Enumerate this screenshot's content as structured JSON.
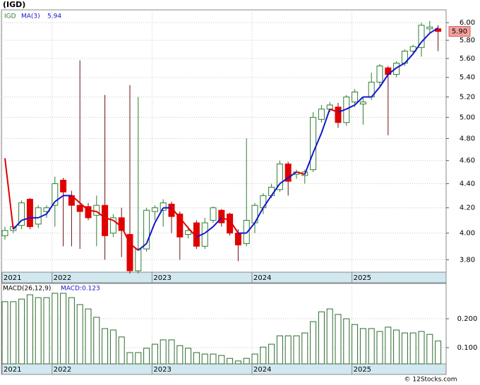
{
  "footer": "© 12Stocks.com",
  "chart_data": [
    {
      "type": "candlestick",
      "title": "(IGD)",
      "symbol": "IGD",
      "log_scale": true,
      "grid": true,
      "up_color": "#2e7d32",
      "down_color": "#e00000",
      "categories": [
        "2021",
        null,
        null,
        null,
        null,
        null,
        "2022",
        null,
        null,
        null,
        null,
        null,
        null,
        null,
        null,
        null,
        null,
        null,
        "2023",
        null,
        null,
        null,
        null,
        null,
        null,
        null,
        null,
        null,
        null,
        null,
        "2024",
        null,
        null,
        null,
        null,
        null,
        null,
        null,
        null,
        null,
        null,
        null,
        "2025",
        null,
        null,
        null,
        null,
        null,
        null,
        null,
        null,
        null,
        null
      ],
      "open": [
        3.98,
        4.02,
        4.06,
        4.27,
        4.07,
        4.17,
        4.22,
        4.43,
        4.3,
        4.22,
        4.21,
        4.14,
        4.22,
        4.0,
        4.12,
        3.99,
        3.72,
        3.88,
        4.17,
        4.18,
        4.23,
        4.15,
        3.99,
        4.08,
        3.9,
        4.1,
        4.18,
        4.15,
        4.0,
        3.92,
        4.08,
        4.2,
        4.3,
        4.35,
        4.57,
        4.48,
        4.47,
        4.52,
        4.98,
        5.08,
        5.1,
        4.95,
        5.15,
        5.13,
        5.2,
        5.35,
        5.5,
        5.43,
        5.55,
        5.68,
        5.72,
        5.93,
        5.93
      ],
      "high": [
        4.05,
        4.06,
        4.26,
        4.28,
        4.22,
        4.22,
        4.46,
        4.45,
        4.34,
        5.58,
        4.24,
        4.3,
        5.22,
        4.15,
        4.2,
        5.32,
        5.2,
        4.2,
        4.22,
        4.27,
        4.25,
        4.17,
        4.05,
        4.1,
        4.12,
        4.21,
        4.19,
        4.16,
        4.03,
        4.8,
        4.24,
        4.32,
        4.4,
        4.6,
        4.59,
        4.52,
        4.52,
        5.05,
        5.12,
        5.15,
        5.14,
        5.22,
        5.28,
        5.2,
        5.45,
        5.54,
        5.52,
        5.57,
        5.7,
        5.75,
        6.0,
        6.02,
        5.97
      ],
      "low": [
        3.95,
        4.0,
        4.03,
        4.03,
        4.04,
        4.12,
        4.05,
        3.9,
        3.9,
        3.88,
        4.1,
        3.9,
        3.8,
        3.97,
        3.82,
        3.7,
        3.7,
        3.86,
        4.1,
        4.05,
        4.0,
        3.8,
        3.96,
        3.88,
        3.88,
        4.08,
        4.05,
        3.98,
        3.79,
        3.9,
        4.0,
        4.15,
        4.28,
        4.33,
        4.3,
        4.44,
        4.4,
        4.5,
        4.95,
        5.05,
        4.9,
        4.92,
        5.1,
        4.93,
        5.17,
        5.3,
        4.83,
        5.4,
        5.52,
        5.65,
        5.62,
        5.88,
        5.68
      ],
      "close": [
        4.02,
        4.05,
        4.24,
        4.05,
        4.2,
        4.2,
        4.4,
        4.33,
        4.22,
        4.17,
        4.12,
        4.22,
        3.98,
        4.12,
        4.02,
        3.72,
        3.88,
        4.18,
        4.2,
        4.24,
        4.13,
        3.97,
        4.02,
        3.9,
        4.08,
        4.2,
        4.08,
        4.0,
        3.91,
        4.1,
        4.22,
        4.3,
        4.37,
        4.57,
        4.42,
        4.5,
        4.5,
        5.0,
        5.08,
        5.12,
        4.95,
        5.2,
        5.25,
        5.15,
        5.35,
        5.52,
        5.43,
        5.55,
        5.68,
        5.73,
        5.97,
        5.95,
        5.9
      ],
      "ma": {
        "name": "MA(3)",
        "last_label": "5.94",
        "up_color": "#1515d0",
        "down_color": "#e00000",
        "values": [
          4.62,
          4.03,
          4.1,
          4.12,
          4.12,
          4.15,
          4.25,
          4.3,
          4.3,
          4.24,
          4.18,
          4.17,
          4.12,
          4.1,
          4.05,
          3.92,
          3.87,
          3.92,
          4.08,
          4.2,
          4.2,
          4.12,
          4.04,
          3.97,
          4.0,
          4.05,
          4.12,
          4.1,
          4.0,
          4.0,
          4.08,
          4.2,
          4.3,
          4.4,
          4.45,
          4.5,
          4.48,
          4.67,
          4.85,
          5.08,
          5.05,
          5.08,
          5.12,
          5.2,
          5.2,
          5.3,
          5.43,
          5.5,
          5.55,
          5.65,
          5.78,
          5.88,
          5.94
        ]
      },
      "last_price": {
        "value": 5.9,
        "label": "5.90"
      },
      "ylim": [
        3.71,
        6.15
      ],
      "yticks": [
        {
          "value": 3.8,
          "label": "3.80"
        },
        {
          "value": 4.0,
          "label": "4.00"
        },
        {
          "value": 4.2,
          "label": "4.20"
        },
        {
          "value": 4.4,
          "label": "4.40"
        },
        {
          "value": 4.6,
          "label": "4.60"
        },
        {
          "value": 4.8,
          "label": "4.80"
        },
        {
          "value": 5.0,
          "label": "5.00"
        },
        {
          "value": 5.2,
          "label": "5.20"
        },
        {
          "value": 5.4,
          "label": "5.40"
        },
        {
          "value": 5.6,
          "label": "5.60"
        },
        {
          "value": 5.8,
          "label": "5.80"
        },
        {
          "value": 6.0,
          "label": "6.00"
        }
      ]
    },
    {
      "type": "bar",
      "name": "MACD(26,12,9)",
      "value_text": "MACD:0.123",
      "color": "#2d6b2d",
      "grid": true,
      "categories": [
        "2021",
        null,
        null,
        null,
        null,
        null,
        "2022",
        null,
        null,
        null,
        null,
        null,
        null,
        null,
        null,
        null,
        null,
        null,
        "2023",
        null,
        null,
        null,
        null,
        null,
        null,
        null,
        null,
        null,
        null,
        null,
        "2024",
        null,
        null,
        null,
        null,
        null,
        null,
        null,
        null,
        null,
        null,
        null,
        "2025",
        null,
        null,
        null,
        null,
        null,
        null,
        null,
        null,
        null,
        null
      ],
      "values": [
        0.259,
        0.259,
        0.268,
        0.283,
        0.273,
        0.273,
        0.288,
        0.288,
        0.273,
        0.249,
        0.234,
        0.205,
        0.166,
        0.161,
        0.137,
        0.083,
        0.083,
        0.098,
        0.112,
        0.127,
        0.127,
        0.107,
        0.098,
        0.083,
        0.078,
        0.078,
        0.073,
        0.063,
        0.054,
        0.063,
        0.078,
        0.102,
        0.112,
        0.141,
        0.141,
        0.141,
        0.151,
        0.19,
        0.224,
        0.234,
        0.215,
        0.2,
        0.18,
        0.166,
        0.166,
        0.156,
        0.171,
        0.161,
        0.151,
        0.151,
        0.156,
        0.146,
        0.123
      ],
      "ylim": [
        0.044,
        0.322
      ],
      "yticks": [
        {
          "value": 0.1,
          "label": "0.100"
        },
        {
          "value": 0.2,
          "label": "0.200"
        }
      ]
    }
  ]
}
